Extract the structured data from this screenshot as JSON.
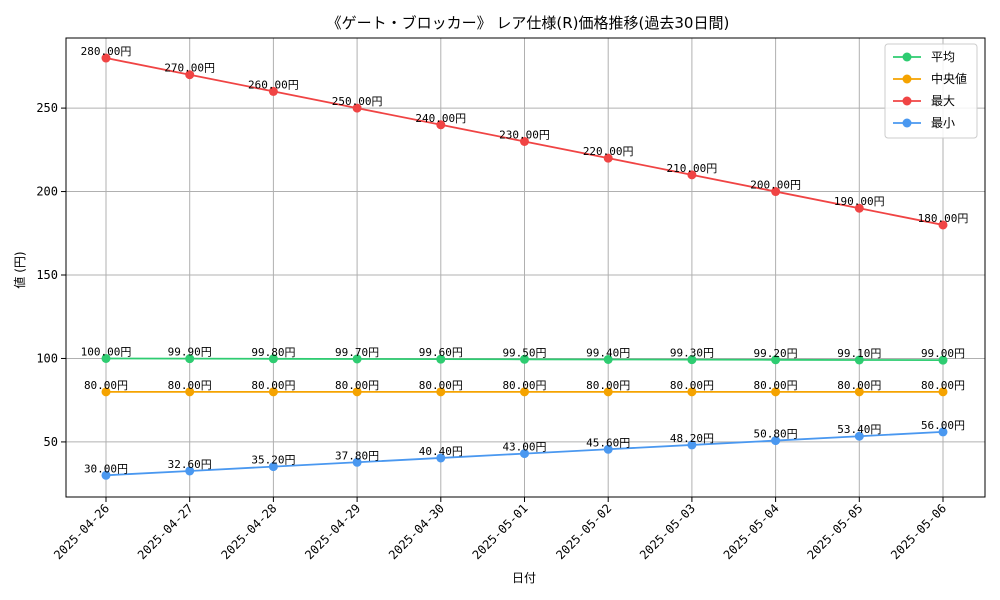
{
  "chart_data": {
    "type": "line",
    "title": "《ゲート・ブロッカー》 レア仕様(R)価格推移(過去30日間)",
    "xlabel": "日付",
    "ylabel": "値 (円)",
    "x": [
      "2025-04-26",
      "2025-04-27",
      "2025-04-28",
      "2025-04-29",
      "2025-04-30",
      "2025-05-01",
      "2025-05-02",
      "2025-05-03",
      "2025-05-04",
      "2025-05-05",
      "2025-05-06"
    ],
    "ylim": [
      17,
      292
    ],
    "yticks": [
      50,
      100,
      150,
      200,
      250
    ],
    "grid": true,
    "legend_position": "top-right",
    "label_suffix": "円",
    "series": [
      {
        "name": "平均",
        "color": "#2ecc71",
        "values": [
          100.0,
          99.9,
          99.8,
          99.7,
          99.6,
          99.5,
          99.4,
          99.3,
          99.2,
          99.1,
          99.0
        ]
      },
      {
        "name": "中央値",
        "color": "#f5a300",
        "values": [
          80.0,
          80.0,
          80.0,
          80.0,
          80.0,
          80.0,
          80.0,
          80.0,
          80.0,
          80.0,
          80.0
        ]
      },
      {
        "name": "最大",
        "color": "#f04444",
        "values": [
          280.0,
          270.0,
          260.0,
          250.0,
          240.0,
          230.0,
          220.0,
          210.0,
          200.0,
          190.0,
          180.0
        ]
      },
      {
        "name": "最小",
        "color": "#4a98f0",
        "values": [
          30.0,
          32.6,
          35.2,
          37.8,
          40.4,
          43.0,
          45.6,
          48.2,
          50.8,
          53.4,
          56.0
        ]
      }
    ]
  }
}
